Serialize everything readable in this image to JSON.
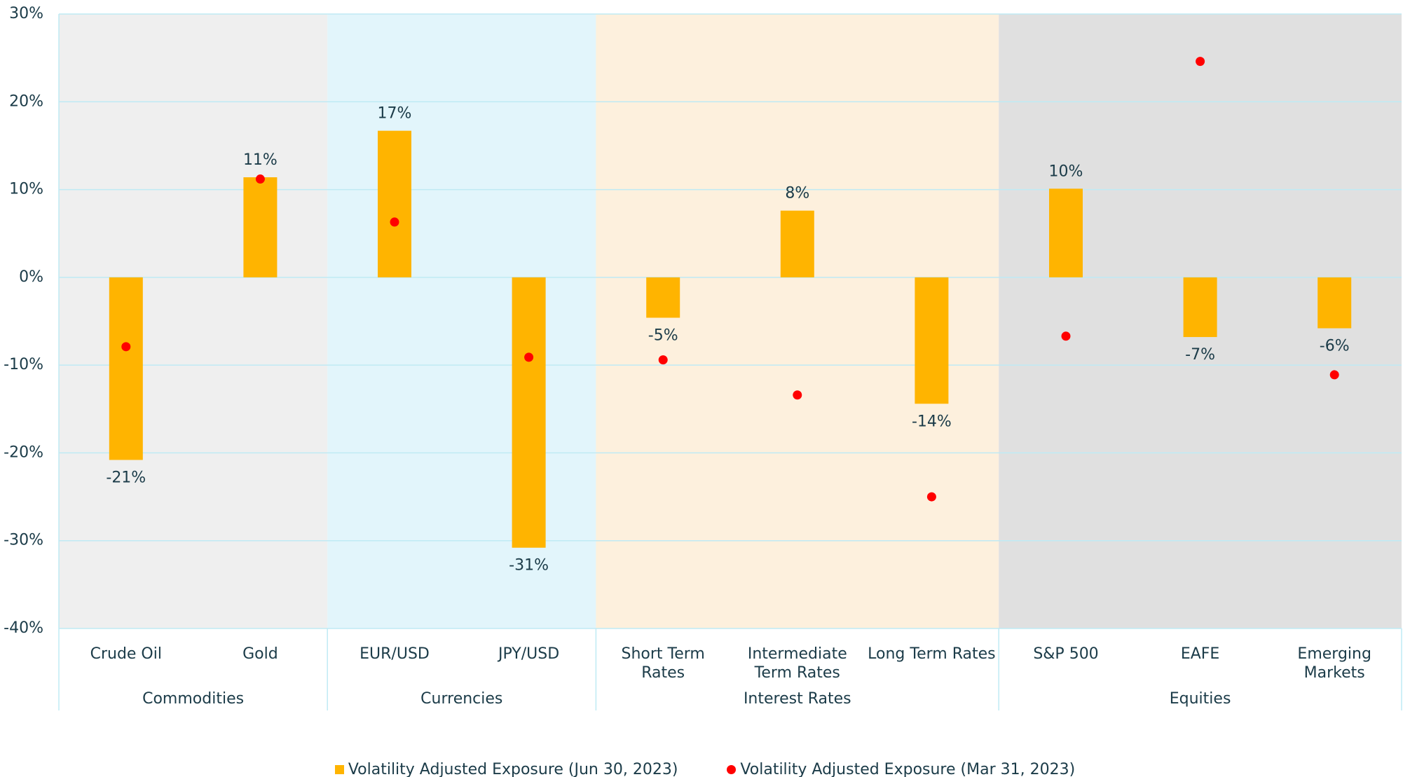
{
  "chart_data": {
    "type": "bar",
    "category_groups": [
      {
        "name": "Commodities",
        "color": "#efefef",
        "categories": [
          "Crude Oil",
          "Gold"
        ]
      },
      {
        "name": "Currencies",
        "color": "#e2f5fb",
        "categories": [
          "EUR/USD",
          "JPY/USD"
        ]
      },
      {
        "name": "Interest Rates",
        "color": "#fdf0dd",
        "categories": [
          "Short Term Rates",
          "Intermediate Term Rates",
          "Long Term Rates"
        ]
      },
      {
        "name": "Equities",
        "color": "#e0e0e0",
        "categories": [
          "S&P 500",
          "EAFE",
          "Emerging Markets"
        ]
      }
    ],
    "series": [
      {
        "name": "Volatility Adjusted Exposure (Jun 30, 2023)",
        "type": "bar",
        "color": "#ffb400",
        "values": [
          -20.8,
          11.4,
          16.7,
          -30.8,
          -4.6,
          7.6,
          -14.4,
          10.1,
          -6.8,
          -5.8
        ],
        "value_labels": [
          "-21%",
          "11%",
          "17%",
          "-31%",
          "-5%",
          "8%",
          "-14%",
          "10%",
          "-7%",
          "-6%"
        ]
      },
      {
        "name": "Volatility Adjusted Exposure (Mar 31, 2023)",
        "type": "scatter",
        "color": "#ff0000",
        "values": [
          -7.9,
          11.2,
          6.3,
          -9.1,
          -9.4,
          -13.4,
          -25.0,
          -6.7,
          24.6,
          -11.1
        ]
      }
    ],
    "ylim": [
      -40,
      30
    ],
    "yticks": [
      {
        "value": -40,
        "label": "-40%"
      },
      {
        "value": -30,
        "label": "-30%"
      },
      {
        "value": -20,
        "label": "-20%"
      },
      {
        "value": -10,
        "label": "-10%"
      },
      {
        "value": 0,
        "label": "0%"
      },
      {
        "value": 10,
        "label": "10%"
      },
      {
        "value": 20,
        "label": "20%"
      },
      {
        "value": 30,
        "label": "30%"
      }
    ],
    "grid": true
  }
}
